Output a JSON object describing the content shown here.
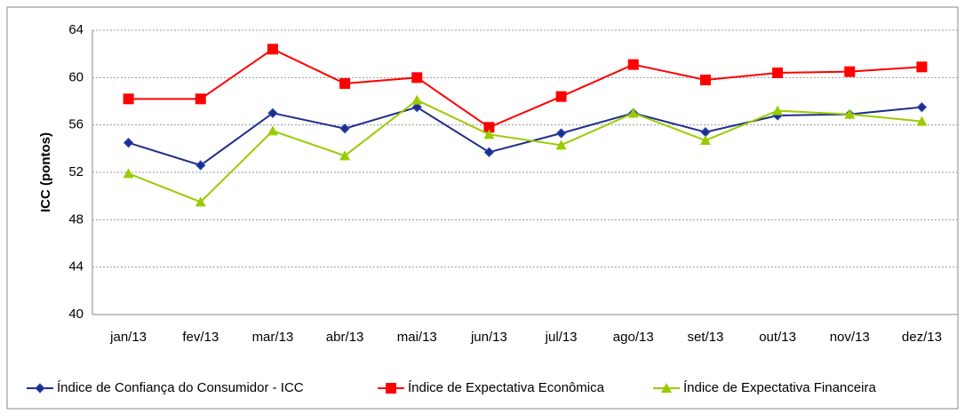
{
  "chart_data": {
    "type": "line",
    "y_label": "ICC (pontos)",
    "categories": [
      "jan/13",
      "fev/13",
      "mar/13",
      "abr/13",
      "mai/13",
      "jun/13",
      "jul/13",
      "ago/13",
      "set/13",
      "out/13",
      "nov/13",
      "dez/13"
    ],
    "series": [
      {
        "name": "Índice de Confiança do Consumidor - ICC",
        "color": "#1f2d8a",
        "marker": "diamond",
        "values": [
          54.5,
          52.6,
          57.0,
          55.7,
          57.5,
          53.7,
          55.3,
          57.0,
          55.4,
          56.8,
          56.9,
          57.5
        ]
      },
      {
        "name": "Índice de Expectativa Econômica",
        "color": "#ff0000",
        "marker": "square",
        "values": [
          58.2,
          58.2,
          62.4,
          59.5,
          60.0,
          55.8,
          58.4,
          61.1,
          59.8,
          60.4,
          60.5,
          60.9
        ]
      },
      {
        "name": "Índice de Expectativa Financeira",
        "color": "#99cc00",
        "marker": "triangle",
        "values": [
          51.9,
          49.5,
          55.5,
          53.4,
          58.1,
          55.2,
          54.3,
          57.0,
          54.7,
          57.2,
          56.9,
          56.3
        ]
      }
    ],
    "ylim": [
      40,
      64
    ],
    "yticks": [
      40,
      44,
      48,
      52,
      56,
      60,
      64
    ],
    "grid": true,
    "legend": "bottom"
  }
}
